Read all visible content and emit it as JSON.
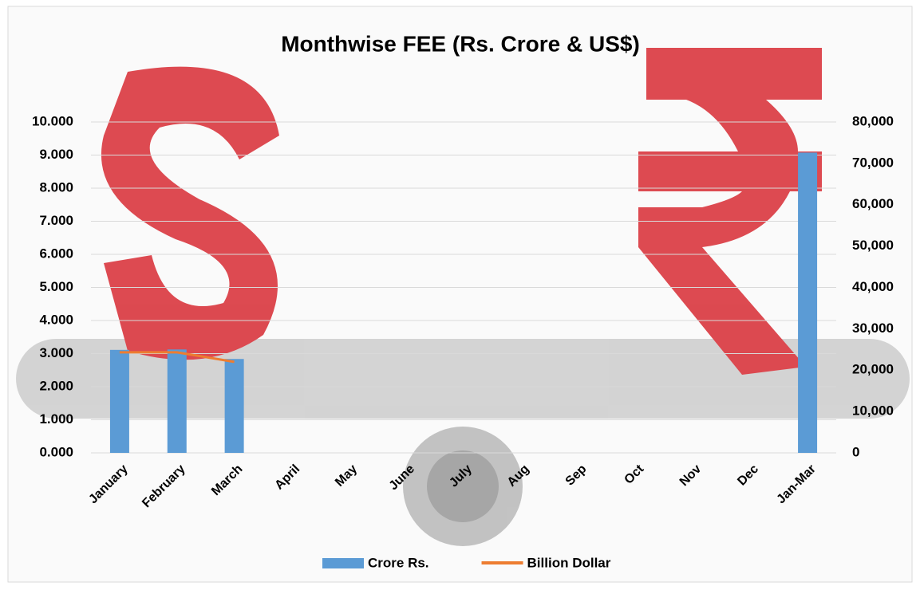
{
  "chart_data": {
    "type": "bar-line",
    "title": "Monthwise FEE (Rs. Crore & US$)",
    "categories": [
      "January",
      "February",
      "March",
      "April",
      "May",
      "June",
      "July",
      "Aug",
      "Sep",
      "Oct",
      "Nov",
      "Dec",
      "Jan-Mar"
    ],
    "series": [
      {
        "name": "Crore Rs.",
        "type": "bar",
        "color": "#5b9bd5",
        "axis": "y2",
        "values": [
          24900,
          25000,
          22700,
          null,
          null,
          null,
          null,
          null,
          null,
          null,
          null,
          null,
          72600
        ]
      },
      {
        "name": "Billion Dollar",
        "type": "line",
        "color": "#ed7d31",
        "values": [
          3.04,
          3.04,
          2.75,
          null,
          null,
          null,
          null,
          null,
          null,
          null,
          null,
          null,
          null
        ]
      }
    ],
    "ylim": [
      0,
      10
    ],
    "yticks": [
      {
        "value": 0,
        "label": "0.000"
      },
      {
        "value": 1,
        "label": "1.000"
      },
      {
        "value": 2,
        "label": "2.000"
      },
      {
        "value": 3,
        "label": "3.000"
      },
      {
        "value": 4,
        "label": "4.000"
      },
      {
        "value": 5,
        "label": "5.000"
      },
      {
        "value": 6,
        "label": "6.000"
      },
      {
        "value": 7,
        "label": "7.000"
      },
      {
        "value": 8,
        "label": "8.000"
      },
      {
        "value": 9,
        "label": "9.000"
      },
      {
        "value": 10,
        "label": "10.000"
      }
    ],
    "y2lim": [
      0,
      80000
    ],
    "y2ticks": [
      0,
      {
        "value": 10000,
        "label": "10,000"
      },
      {
        "value": 20000,
        "label": "20,000"
      },
      {
        "value": 30000,
        "label": "30,000"
      },
      {
        "value": 40000,
        "label": "40,000"
      },
      {
        "value": 50000,
        "label": "50,000"
      },
      {
        "value": 60000,
        "label": "60,000"
      },
      {
        "value": 70000,
        "label": "70,000"
      },
      {
        "value": 80000,
        "label": "80,000"
      }
    ],
    "grid": true,
    "legend": "bottom"
  }
}
